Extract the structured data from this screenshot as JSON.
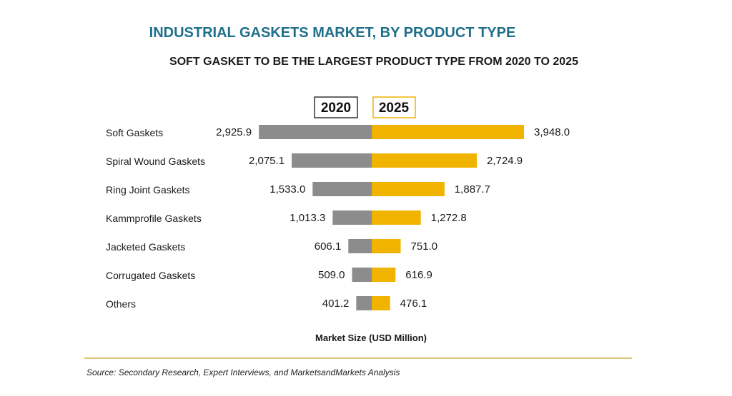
{
  "chart_data": {
    "type": "bar",
    "title": "INDUSTRIAL GASKETS MARKET, BY PRODUCT TYPE",
    "subtitle": "SOFT GASKET TO BE THE LARGEST PRODUCT TYPE FROM 2020 TO 2025",
    "xlabel": "Market Size (USD Million)",
    "ylabel": "",
    "categories": [
      "Soft Gaskets",
      "Spiral Wound Gaskets",
      "Ring Joint Gaskets",
      "Kammprofile Gaskets",
      "Jacketed Gaskets",
      "Corrugated Gaskets",
      "Others"
    ],
    "series": [
      {
        "name": "2020",
        "color": "#8c8c8c",
        "values": [
          2925.9,
          2075.1,
          1533.0,
          1013.3,
          606.1,
          509.0,
          401.2
        ],
        "labels": [
          "2,925.9",
          "2,075.1",
          "1,533.0",
          "1,013.3",
          "606.1",
          "509.0",
          "401.2"
        ]
      },
      {
        "name": "2025",
        "color": "#f0b400",
        "values": [
          3948.0,
          2724.9,
          1887.7,
          1272.8,
          751.0,
          616.9,
          476.1
        ],
        "labels": [
          "3,948.0",
          "2,724.9",
          "1,887.7",
          "1,272.8",
          "751.0",
          "616.9",
          "476.1"
        ]
      }
    ],
    "xlim": [
      0,
      4000
    ],
    "grid": false,
    "source": "Source: Secondary Research, Expert Interviews, and MarketsandMarkets Analysis"
  },
  "colors": {
    "title": "#1f6f8b",
    "subtitle": "#1a1a1a",
    "divider": "#c9a227",
    "legend_2025_border": "#f0b400",
    "legend_2020_border": "#333333"
  }
}
